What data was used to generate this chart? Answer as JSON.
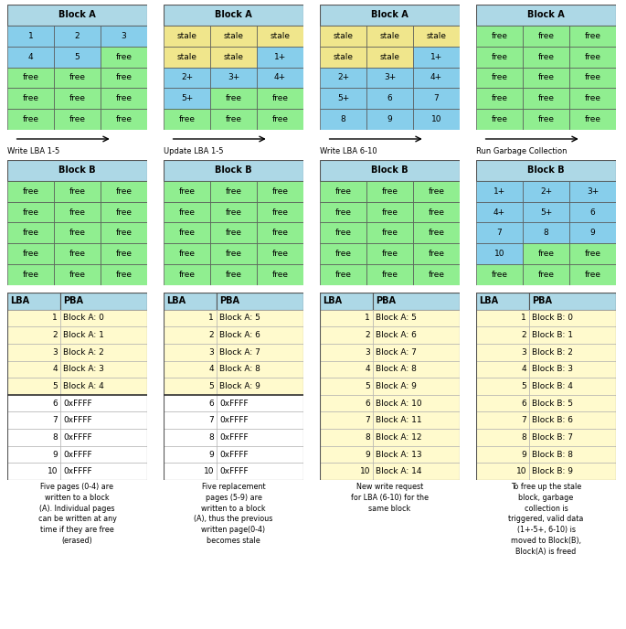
{
  "colors": {
    "blue": "#87CEEB",
    "green": "#90EE90",
    "yellow": "#FFFACD",
    "stale": "#F0E68C",
    "header_blue": "#ADD8E6",
    "white": "#FFFFFF"
  },
  "block_a_tables": [
    {
      "title": "Block A",
      "rows": [
        [
          "1",
          "2",
          "3"
        ],
        [
          "4",
          "5",
          "free"
        ],
        [
          "free",
          "free",
          "free"
        ],
        [
          "free",
          "free",
          "free"
        ],
        [
          "free",
          "free",
          "free"
        ]
      ],
      "cell_colors": [
        [
          "blue",
          "blue",
          "blue"
        ],
        [
          "blue",
          "blue",
          "green"
        ],
        [
          "green",
          "green",
          "green"
        ],
        [
          "green",
          "green",
          "green"
        ],
        [
          "green",
          "green",
          "green"
        ]
      ]
    },
    {
      "title": "Block A",
      "rows": [
        [
          "stale",
          "stale",
          "stale"
        ],
        [
          "stale",
          "stale",
          "1+"
        ],
        [
          "2+",
          "3+",
          "4+"
        ],
        [
          "5+",
          "free",
          "free"
        ],
        [
          "free",
          "free",
          "free"
        ]
      ],
      "cell_colors": [
        [
          "stale",
          "stale",
          "stale"
        ],
        [
          "stale",
          "stale",
          "blue"
        ],
        [
          "blue",
          "blue",
          "blue"
        ],
        [
          "blue",
          "green",
          "green"
        ],
        [
          "green",
          "green",
          "green"
        ]
      ]
    },
    {
      "title": "Block A",
      "rows": [
        [
          "stale",
          "stale",
          "stale"
        ],
        [
          "stale",
          "stale",
          "1+"
        ],
        [
          "2+",
          "3+",
          "4+"
        ],
        [
          "5+",
          "6",
          "7"
        ],
        [
          "8",
          "9",
          "10"
        ]
      ],
      "cell_colors": [
        [
          "stale",
          "stale",
          "stale"
        ],
        [
          "stale",
          "stale",
          "blue"
        ],
        [
          "blue",
          "blue",
          "blue"
        ],
        [
          "blue",
          "blue",
          "blue"
        ],
        [
          "blue",
          "blue",
          "blue"
        ]
      ]
    },
    {
      "title": "Block A",
      "rows": [
        [
          "free",
          "free",
          "free"
        ],
        [
          "free",
          "free",
          "free"
        ],
        [
          "free",
          "free",
          "free"
        ],
        [
          "free",
          "free",
          "free"
        ],
        [
          "free",
          "free",
          "free"
        ]
      ],
      "cell_colors": [
        [
          "green",
          "green",
          "green"
        ],
        [
          "green",
          "green",
          "green"
        ],
        [
          "green",
          "green",
          "green"
        ],
        [
          "green",
          "green",
          "green"
        ],
        [
          "green",
          "green",
          "green"
        ]
      ]
    }
  ],
  "block_b_tables": [
    {
      "title": "Block B",
      "rows": [
        [
          "free",
          "free",
          "free"
        ],
        [
          "free",
          "free",
          "free"
        ],
        [
          "free",
          "free",
          "free"
        ],
        [
          "free",
          "free",
          "free"
        ],
        [
          "free",
          "free",
          "free"
        ]
      ],
      "cell_colors": [
        [
          "green",
          "green",
          "green"
        ],
        [
          "green",
          "green",
          "green"
        ],
        [
          "green",
          "green",
          "green"
        ],
        [
          "green",
          "green",
          "green"
        ],
        [
          "green",
          "green",
          "green"
        ]
      ]
    },
    {
      "title": "Block B",
      "rows": [
        [
          "free",
          "free",
          "free"
        ],
        [
          "free",
          "free",
          "free"
        ],
        [
          "free",
          "free",
          "free"
        ],
        [
          "free",
          "free",
          "free"
        ],
        [
          "free",
          "free",
          "free"
        ]
      ],
      "cell_colors": [
        [
          "green",
          "green",
          "green"
        ],
        [
          "green",
          "green",
          "green"
        ],
        [
          "green",
          "green",
          "green"
        ],
        [
          "green",
          "green",
          "green"
        ],
        [
          "green",
          "green",
          "green"
        ]
      ]
    },
    {
      "title": "Block B",
      "rows": [
        [
          "free",
          "free",
          "free"
        ],
        [
          "free",
          "free",
          "free"
        ],
        [
          "free",
          "free",
          "free"
        ],
        [
          "free",
          "free",
          "free"
        ],
        [
          "free",
          "free",
          "free"
        ]
      ],
      "cell_colors": [
        [
          "green",
          "green",
          "green"
        ],
        [
          "green",
          "green",
          "green"
        ],
        [
          "green",
          "green",
          "green"
        ],
        [
          "green",
          "green",
          "green"
        ],
        [
          "green",
          "green",
          "green"
        ]
      ]
    },
    {
      "title": "Block B",
      "rows": [
        [
          "1+",
          "2+",
          "3+"
        ],
        [
          "4+",
          "5+",
          "6"
        ],
        [
          "7",
          "8",
          "9"
        ],
        [
          "10",
          "free",
          "free"
        ],
        [
          "free",
          "free",
          "free"
        ]
      ],
      "cell_colors": [
        [
          "blue",
          "blue",
          "blue"
        ],
        [
          "blue",
          "blue",
          "blue"
        ],
        [
          "blue",
          "blue",
          "blue"
        ],
        [
          "blue",
          "green",
          "green"
        ],
        [
          "green",
          "green",
          "green"
        ]
      ]
    }
  ],
  "mapping_tables": [
    {
      "headers": [
        "LBA",
        "PBA"
      ],
      "rows": [
        [
          "1",
          "Block A: 0"
        ],
        [
          "2",
          "Block A: 1"
        ],
        [
          "3",
          "Block A: 2"
        ],
        [
          "4",
          "Block A: 3"
        ],
        [
          "5",
          "Block A: 4"
        ],
        [
          "6",
          "0xFFFF"
        ],
        [
          "7",
          "0xFFFF"
        ],
        [
          "8",
          "0xFFFF"
        ],
        [
          "9",
          "0xFFFF"
        ],
        [
          "10",
          "0xFFFF"
        ]
      ],
      "row_colors": [
        "yellow",
        "yellow",
        "yellow",
        "yellow",
        "yellow",
        "white",
        "white",
        "white",
        "white",
        "white"
      ],
      "divider_after": 4
    },
    {
      "headers": [
        "LBA",
        "PBA"
      ],
      "rows": [
        [
          "1",
          "Block A: 5"
        ],
        [
          "2",
          "Block A: 6"
        ],
        [
          "3",
          "Block A: 7"
        ],
        [
          "4",
          "Block A: 8"
        ],
        [
          "5",
          "Block A: 9"
        ],
        [
          "6",
          "0xFFFF"
        ],
        [
          "7",
          "0xFFFF"
        ],
        [
          "8",
          "0xFFFF"
        ],
        [
          "9",
          "0xFFFF"
        ],
        [
          "10",
          "0xFFFF"
        ]
      ],
      "row_colors": [
        "yellow",
        "yellow",
        "yellow",
        "yellow",
        "yellow",
        "white",
        "white",
        "white",
        "white",
        "white"
      ],
      "divider_after": 4
    },
    {
      "headers": [
        "LBA",
        "PBA"
      ],
      "rows": [
        [
          "1",
          "Block A: 5"
        ],
        [
          "2",
          "Block A: 6"
        ],
        [
          "3",
          "Block A: 7"
        ],
        [
          "4",
          "Block A: 8"
        ],
        [
          "5",
          "Block A: 9"
        ],
        [
          "6",
          "Block A: 10"
        ],
        [
          "7",
          "Block A: 11"
        ],
        [
          "8",
          "Block A: 12"
        ],
        [
          "9",
          "Block A: 13"
        ],
        [
          "10",
          "Block A: 14"
        ]
      ],
      "row_colors": [
        "yellow",
        "yellow",
        "yellow",
        "yellow",
        "yellow",
        "yellow",
        "yellow",
        "yellow",
        "yellow",
        "yellow"
      ],
      "divider_after": -1
    },
    {
      "headers": [
        "LBA",
        "PBA"
      ],
      "rows": [
        [
          "1",
          "Block B: 0"
        ],
        [
          "2",
          "Block B: 1"
        ],
        [
          "3",
          "Block B: 2"
        ],
        [
          "4",
          "Block B: 3"
        ],
        [
          "5",
          "Block B: 4"
        ],
        [
          "6",
          "Block B: 5"
        ],
        [
          "7",
          "Block B: 6"
        ],
        [
          "8",
          "Block B: 7"
        ],
        [
          "9",
          "Block B: 8"
        ],
        [
          "10",
          "Block B: 9"
        ]
      ],
      "row_colors": [
        "yellow",
        "yellow",
        "yellow",
        "yellow",
        "yellow",
        "yellow",
        "yellow",
        "yellow",
        "yellow",
        "yellow"
      ],
      "divider_after": -1
    }
  ],
  "arrows": [
    "Write LBA 1-5",
    "Update LBA 1-5",
    "Write LBA 6-10",
    "Run Garbage Collection"
  ],
  "descriptions": [
    "Five pages (0-4) are\nwritten to a block\n(A). Individual pages\ncan be written at any\ntime if they are free\n(erased)",
    "Five replacement\npages (5-9) are\nwritten to a block\n(A), thus the previous\nwritten page(0-4)\nbecomes stale",
    "New write request\nfor LBA (6-10) for the\nsame block",
    "To free up the stale\nblock, garbage\ncollection is\ntriggered, valid data\n(1+-5+, 6-10) is\nmoved to Block(B),\nBlock(A) is freed"
  ],
  "fig_width": 6.85,
  "fig_height": 6.88,
  "dpi": 100
}
